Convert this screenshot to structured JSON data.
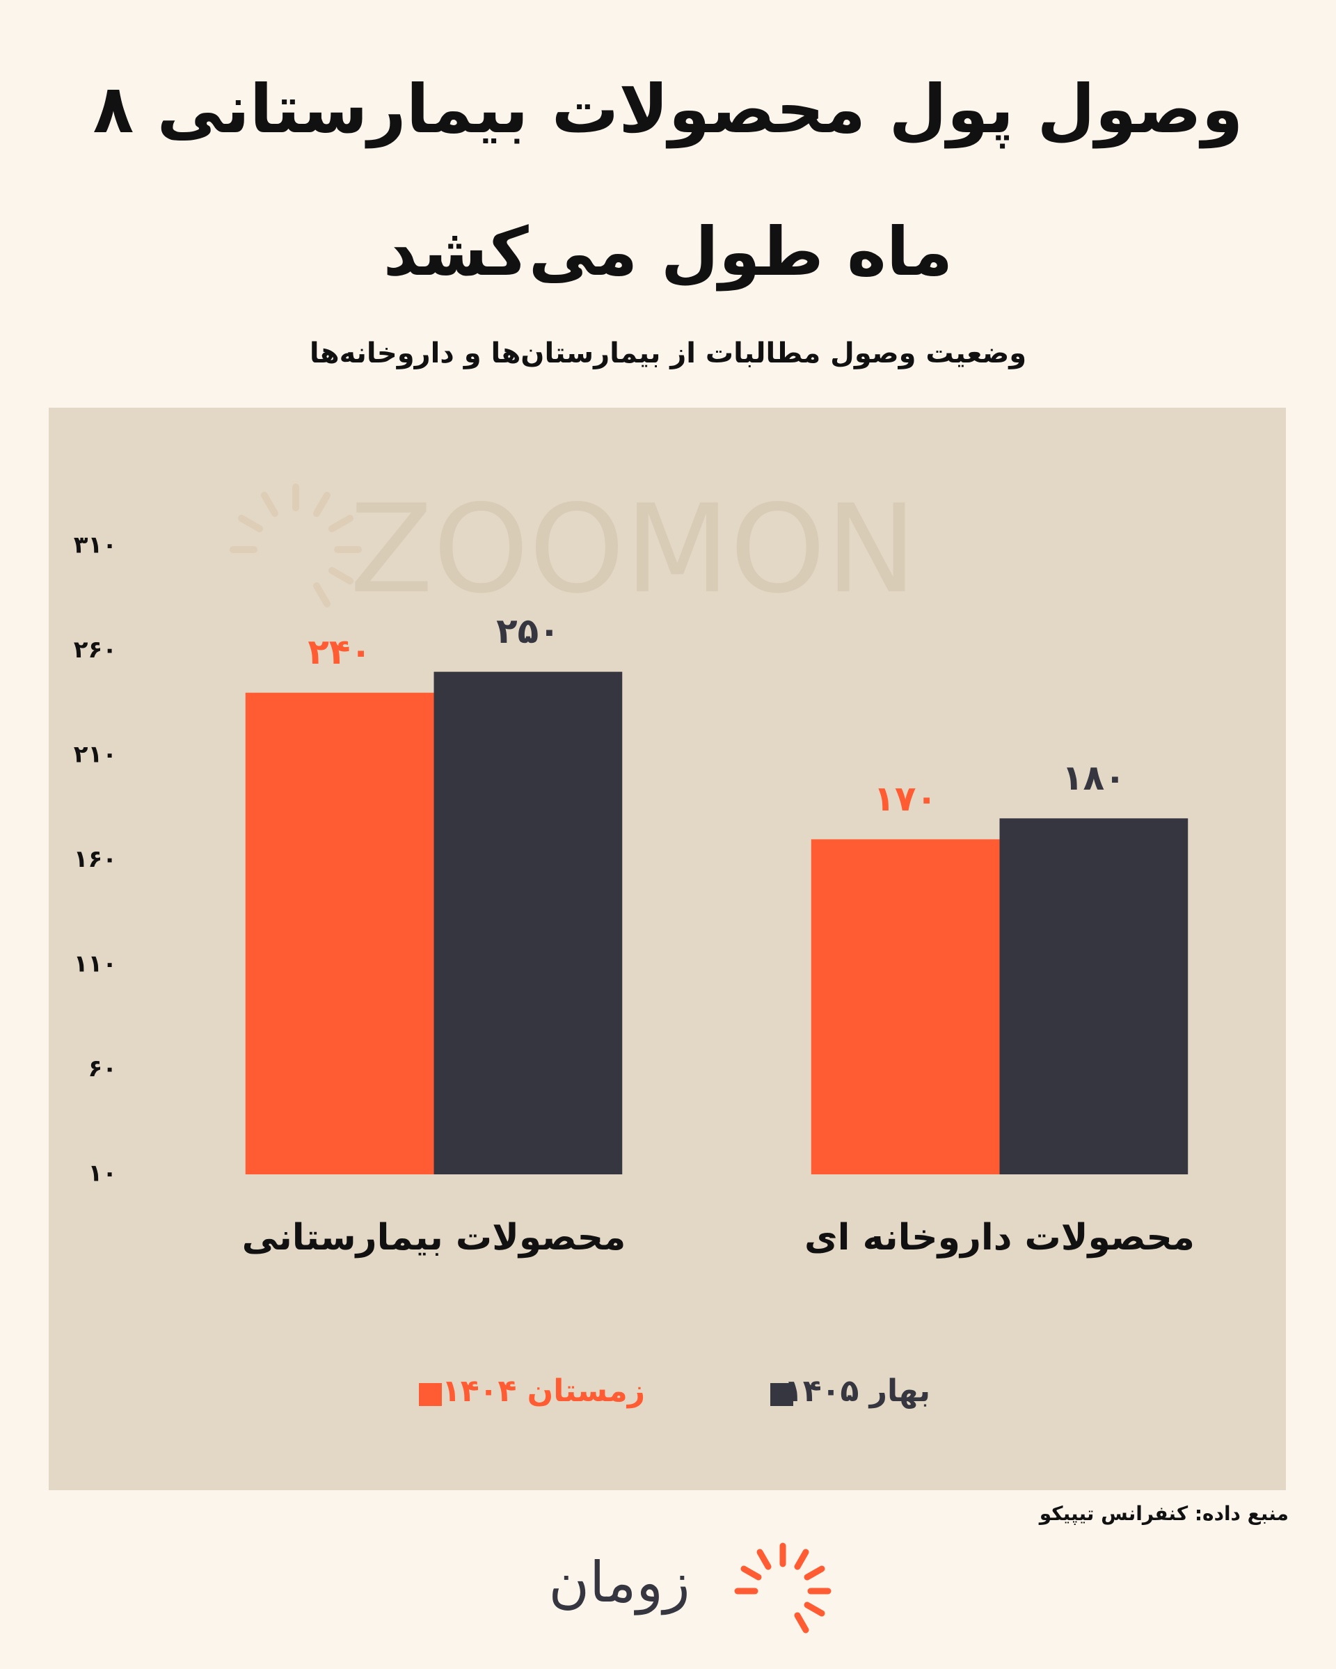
{
  "chart_data": {
    "type": "bar",
    "title": "وصول پول محصولات بیمارستانی ۸ ماه طول می‌کشد",
    "subtitle": "وضعیت وصول مطالبات از بیمارستان‌ها و داروخانه‌ها",
    "categories": [
      "محصولات بیمارستانی",
      "محصولات داروخانه ای"
    ],
    "series": [
      {
        "name": "زمستان ۱۴۰۴",
        "color": "#FF5C33",
        "values": [
          240,
          170
        ],
        "value_labels": [
          "۲۴۰",
          "۱۷۰"
        ]
      },
      {
        "name": "بهار ۱۴۰۵",
        "color": "#363641",
        "values": [
          250,
          180
        ],
        "value_labels": [
          "۲۵۰",
          "۱۸۰"
        ]
      }
    ],
    "ylim": [
      10,
      310
    ],
    "yticks": [
      {
        "value": 10,
        "label": "۱۰"
      },
      {
        "value": 60,
        "label": "۶۰"
      },
      {
        "value": 110,
        "label": "۱۱۰"
      },
      {
        "value": 160,
        "label": "۱۶۰"
      },
      {
        "value": 210,
        "label": "۲۱۰"
      },
      {
        "value": 260,
        "label": "۲۶۰"
      },
      {
        "value": 310,
        "label": "۳۱۰"
      }
    ],
    "grid": false,
    "legend": "bottom",
    "watermark": "ZOOMON",
    "source": "منبع داده: کنفرانس تیپیکو",
    "logo": "زومان"
  }
}
